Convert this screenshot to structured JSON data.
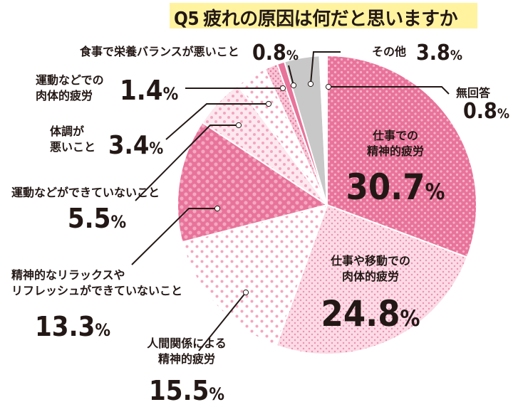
{
  "chart_data": {
    "type": "pie",
    "title": "Q5 疲れの原因は何だと思いますか",
    "slices": [
      {
        "label": "仕事での精神的疲労",
        "value": 30.7,
        "value_label": "30.7%",
        "color": "#e8739a",
        "pattern": "dense-dots"
      },
      {
        "label": "仕事や移動での肉体的疲労",
        "value": 24.8,
        "value_label": "24.8%",
        "color": "#fbdbe6",
        "pattern": "fine-dots"
      },
      {
        "label": "人間関係による精神的疲労",
        "value": 15.5,
        "value_label": "15.5%",
        "color": "#ffffff",
        "pattern": "sparse-dots"
      },
      {
        "label": "精神的なリラックスやリフレッシュができていないこと",
        "value": 13.3,
        "value_label": "13.3%",
        "color": "#e8739a",
        "pattern": "light-dots"
      },
      {
        "label": "運動などができていないこと",
        "value": 5.5,
        "value_label": "5.5%",
        "color": "#fde8ef",
        "pattern": "sparse-dots"
      },
      {
        "label": "体調が悪いこと",
        "value": 3.4,
        "value_label": "3.4%",
        "color": "#ffffff",
        "pattern": "sparse-dots"
      },
      {
        "label": "運動などでの肉体的疲労",
        "value": 1.4,
        "value_label": "1.4%",
        "color": "#f7c5d6",
        "pattern": "dense-dots"
      },
      {
        "label": "食事で栄養バランスが悪いこと",
        "value": 0.8,
        "value_label": "0.8%",
        "color": "#e8739a",
        "pattern": "none"
      },
      {
        "label": "その他",
        "value": 3.8,
        "value_label": "3.8%",
        "color": "#c8c8c8",
        "pattern": "none"
      },
      {
        "label": "無回答",
        "value": 0.8,
        "value_label": "0.8%",
        "color": "#ffffff",
        "pattern": "none"
      }
    ],
    "start": "12 o'clock",
    "direction": "clockwise",
    "legend": "none"
  },
  "title_parts": {
    "qnum": "Q5",
    "text": "疲れの原因は何だと思いますか"
  },
  "labels": [
    {
      "lines": [
        "仕事での",
        "精神的疲労"
      ],
      "pct": "30.7",
      "pct_unit": "%"
    },
    {
      "lines": [
        "仕事や移動での",
        "肉体的疲労"
      ],
      "pct": "24.8",
      "pct_unit": "%"
    },
    {
      "lines": [
        "人間関係による",
        "精神的疲労"
      ],
      "pct": "15.5",
      "pct_unit": "%"
    },
    {
      "lines": [
        "精神的なリラックスや",
        "リフレッシュができていないこと"
      ],
      "pct": "13.3",
      "pct_unit": "%"
    },
    {
      "lines": [
        "運動などができていないこと"
      ],
      "pct": "5.5",
      "pct_unit": "%"
    },
    {
      "lines": [
        "体調が",
        "悪いこと"
      ],
      "pct": "3.4",
      "pct_unit": "%"
    },
    {
      "lines": [
        "運動などでの",
        "肉体的疲労"
      ],
      "pct": "1.4",
      "pct_unit": "%"
    },
    {
      "lines": [
        "食事で栄養バランスが悪いこと"
      ],
      "pct": "0.8",
      "pct_unit": "%"
    },
    {
      "lines": [
        "その他"
      ],
      "pct": "3.8",
      "pct_unit": "%"
    },
    {
      "lines": [
        "無回答"
      ],
      "pct": "0.8",
      "pct_unit": "%"
    }
  ],
  "colors": {
    "pink": "#e8739a",
    "light_pink": "#fbdbe6",
    "gray": "#c8c8c8",
    "ink": "#231815",
    "title_highlight": "#fff3a0"
  }
}
